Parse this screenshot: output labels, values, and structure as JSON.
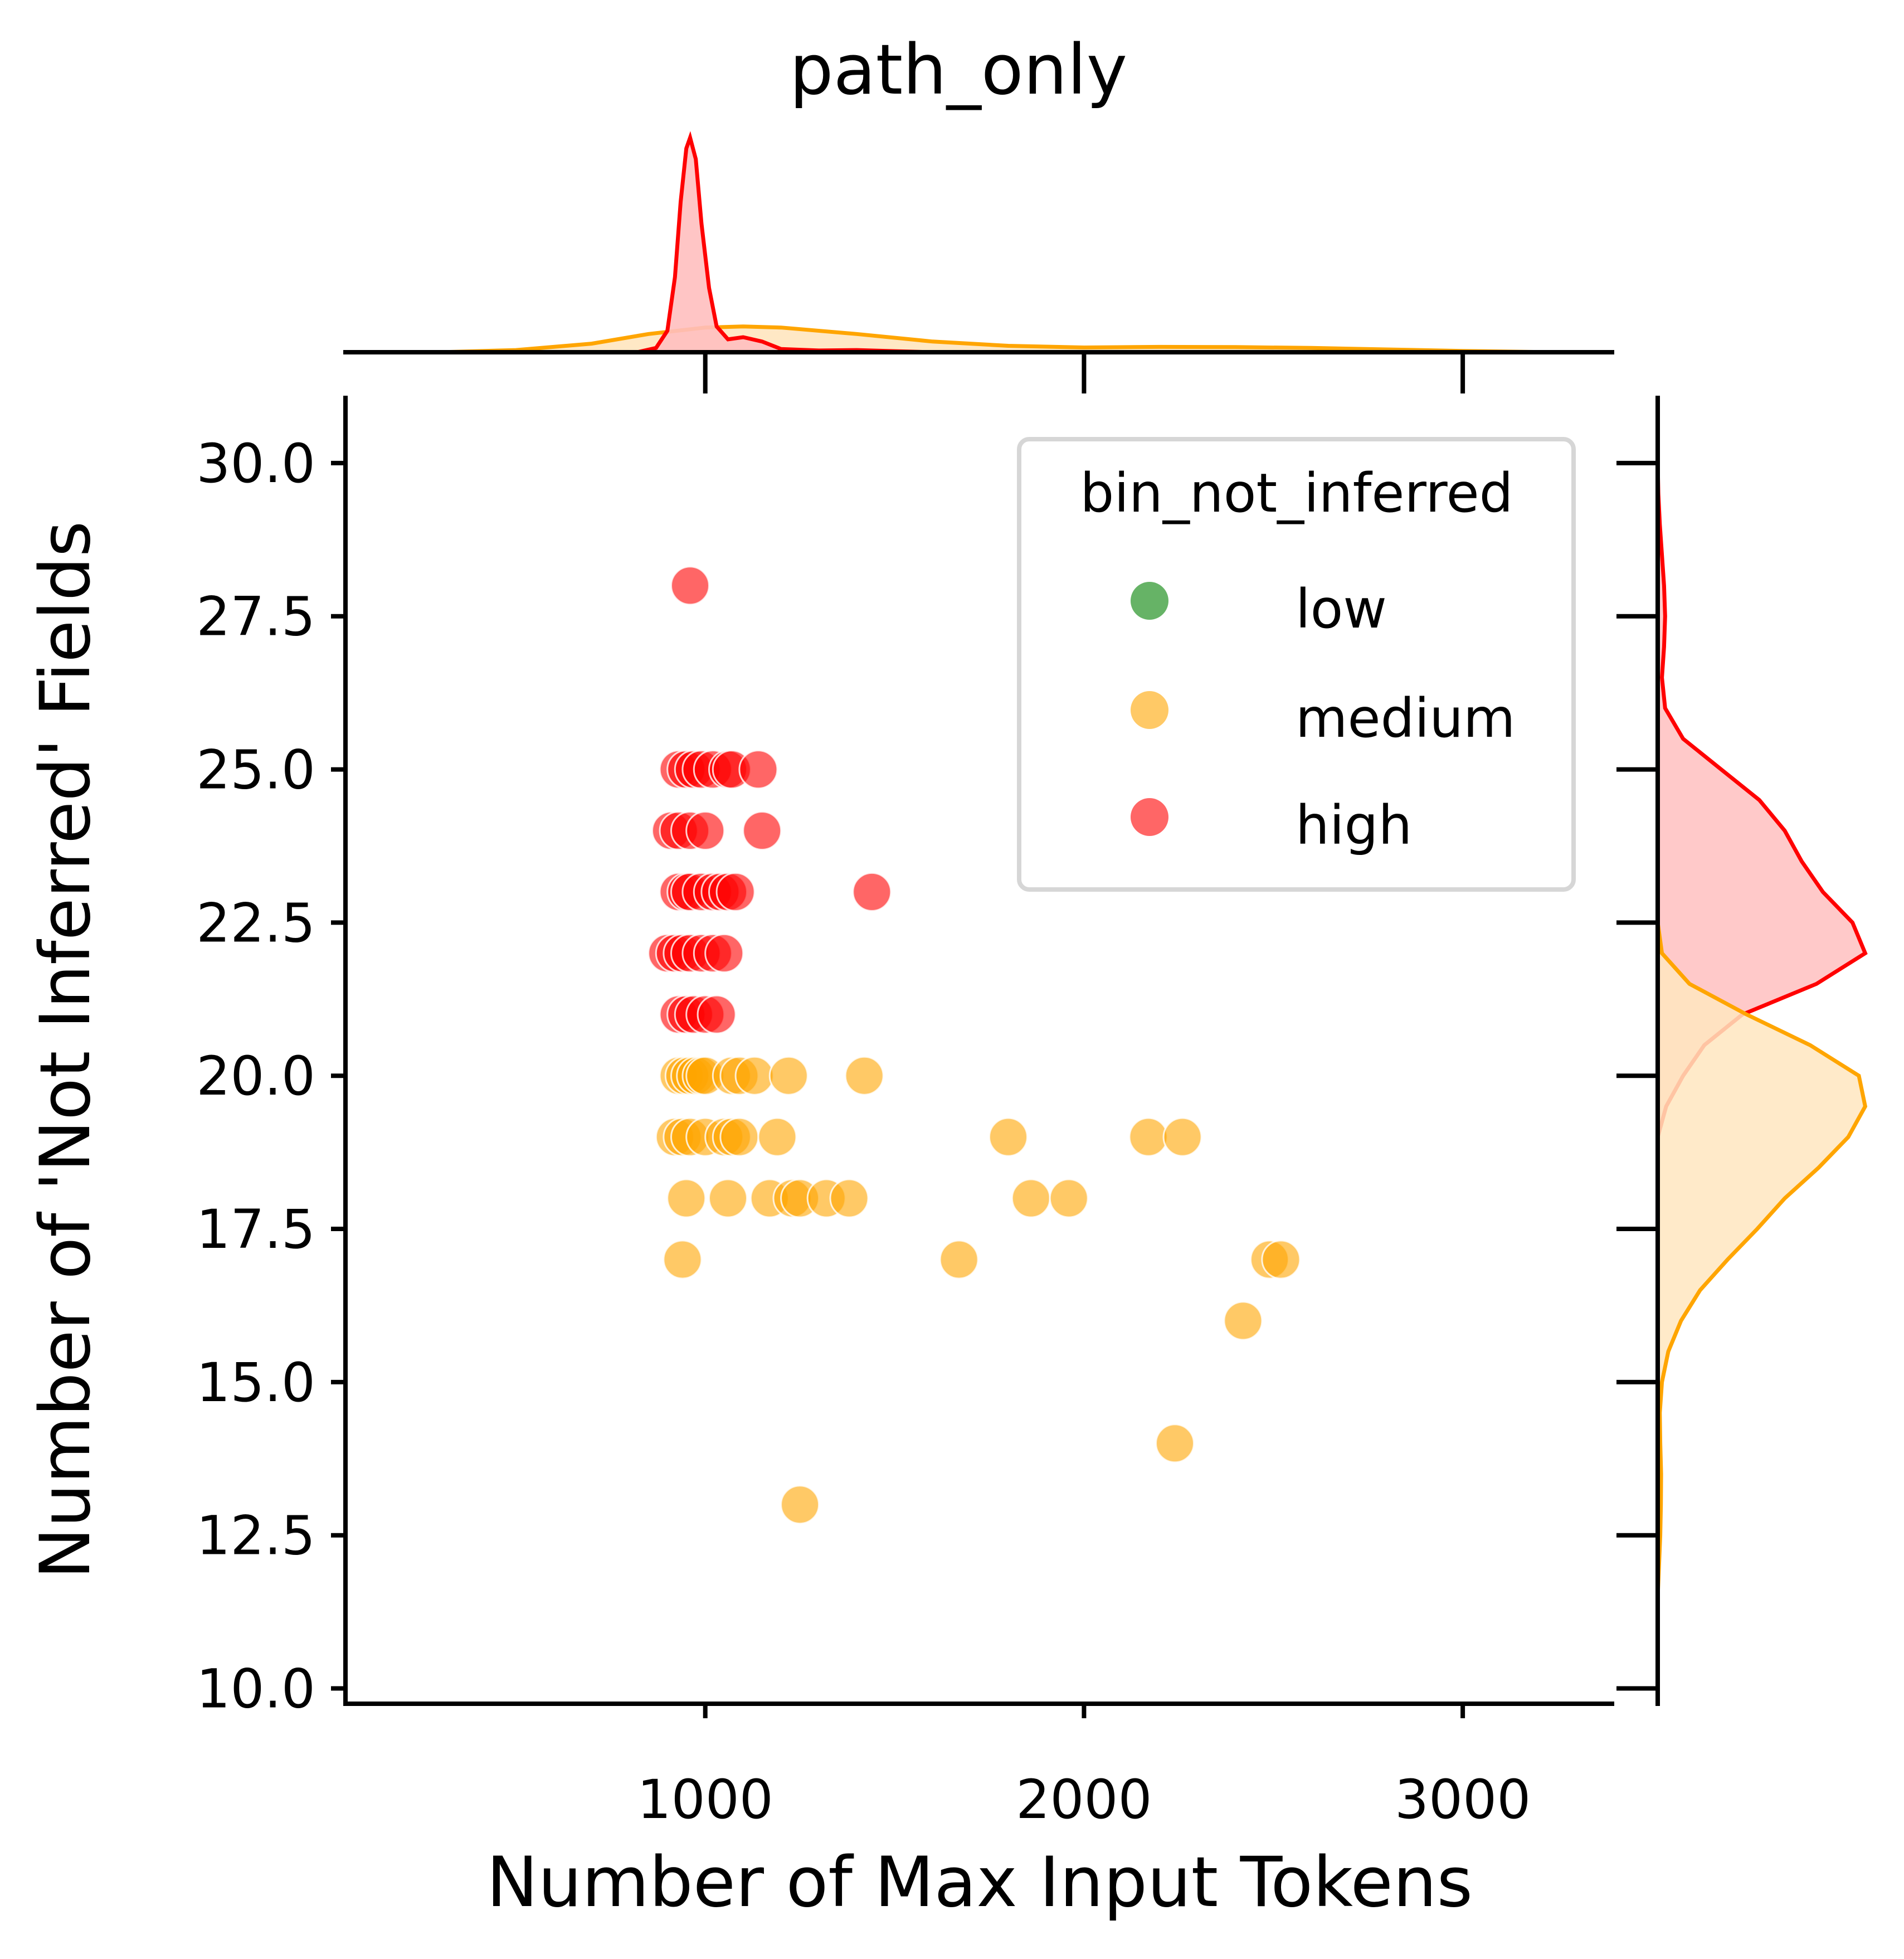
{
  "chart_data": {
    "type": "scatter",
    "title": "path_only",
    "xlabel": "Number of Max Input Tokens",
    "ylabel": "Number of 'Not Inferred' Fields",
    "xlim": [
      50,
      3400
    ],
    "ylim": [
      9.75,
      31.1
    ],
    "x_ticks": [
      "1000",
      "2000",
      "3000"
    ],
    "x_tick_values": [
      1000,
      2000,
      3000
    ],
    "y_ticks": [
      "10.0",
      "12.5",
      "15.0",
      "17.5",
      "20.0",
      "22.5",
      "25.0",
      "27.5",
      "30.0"
    ],
    "y_tick_values": [
      10,
      12.5,
      15,
      17.5,
      20,
      22.5,
      25,
      27.5,
      30
    ],
    "grid": false,
    "legend": {
      "title": "bin_not_inferred",
      "placement": "upper-right",
      "entries": [
        {
          "label": "low",
          "color": "#008000"
        },
        {
          "label": "medium",
          "color": "#FFA500"
        },
        {
          "label": "high",
          "color": "#FF0000"
        }
      ]
    },
    "series": [
      {
        "name": "medium",
        "color": "#FFA500",
        "points": [
          [
            930,
            20
          ],
          [
            945,
            20
          ],
          [
            960,
            20
          ],
          [
            975,
            20
          ],
          [
            990,
            20
          ],
          [
            1000,
            20
          ],
          [
            1070,
            20
          ],
          [
            1090,
            20
          ],
          [
            1130,
            20
          ],
          [
            1220,
            20
          ],
          [
            1420,
            20
          ],
          [
            920,
            19
          ],
          [
            940,
            19
          ],
          [
            960,
            19
          ],
          [
            1000,
            19
          ],
          [
            1050,
            19
          ],
          [
            1070,
            19
          ],
          [
            1090,
            19
          ],
          [
            1190,
            19
          ],
          [
            1800,
            19
          ],
          [
            2170,
            19
          ],
          [
            2260,
            19
          ],
          [
            950,
            18
          ],
          [
            1060,
            18
          ],
          [
            1170,
            18
          ],
          [
            1230,
            18
          ],
          [
            1250,
            18
          ],
          [
            1320,
            18
          ],
          [
            1380,
            18
          ],
          [
            1860,
            18
          ],
          [
            1960,
            18
          ],
          [
            940,
            17
          ],
          [
            1670,
            17
          ],
          [
            2490,
            17
          ],
          [
            2520,
            17
          ],
          [
            2420,
            16
          ],
          [
            2240,
            14
          ],
          [
            1250,
            13
          ]
        ]
      },
      {
        "name": "high",
        "color": "#FF0000",
        "points": [
          [
            960,
            28
          ],
          [
            930,
            25
          ],
          [
            950,
            25
          ],
          [
            970,
            25
          ],
          [
            990,
            25
          ],
          [
            1020,
            25
          ],
          [
            1060,
            25
          ],
          [
            1070,
            25
          ],
          [
            1140,
            25
          ],
          [
            910,
            24
          ],
          [
            930,
            24
          ],
          [
            960,
            24
          ],
          [
            1000,
            24
          ],
          [
            1150,
            24
          ],
          [
            930,
            23
          ],
          [
            950,
            23
          ],
          [
            960,
            23
          ],
          [
            990,
            23
          ],
          [
            1020,
            23
          ],
          [
            1040,
            23
          ],
          [
            1060,
            23
          ],
          [
            1080,
            23
          ],
          [
            1440,
            23
          ],
          [
            900,
            22
          ],
          [
            920,
            22
          ],
          [
            940,
            22
          ],
          [
            960,
            22
          ],
          [
            990,
            22
          ],
          [
            1020,
            22
          ],
          [
            1050,
            22
          ],
          [
            930,
            21
          ],
          [
            950,
            21
          ],
          [
            970,
            21
          ],
          [
            1000,
            21
          ],
          [
            1030,
            21
          ]
        ]
      }
    ],
    "marginal_x": [
      {
        "name": "high",
        "color": "#FF0000",
        "fill": "#FFBFBF",
        "curve": [
          [
            820,
            0
          ],
          [
            870,
            0.02
          ],
          [
            900,
            0.1
          ],
          [
            920,
            0.35
          ],
          [
            935,
            0.7
          ],
          [
            950,
            0.95
          ],
          [
            960,
            1
          ],
          [
            975,
            0.9
          ],
          [
            990,
            0.6
          ],
          [
            1010,
            0.3
          ],
          [
            1030,
            0.12
          ],
          [
            1060,
            0.06
          ],
          [
            1100,
            0.07
          ],
          [
            1150,
            0.05
          ],
          [
            1200,
            0.015
          ],
          [
            1300,
            0.008
          ],
          [
            1400,
            0.01
          ],
          [
            1500,
            0.005
          ],
          [
            1600,
            0
          ]
        ]
      },
      {
        "name": "medium",
        "color": "#FFA500",
        "fill": "#FFE6BF",
        "curve": [
          [
            300,
            0
          ],
          [
            500,
            0.01
          ],
          [
            700,
            0.04
          ],
          [
            850,
            0.085
          ],
          [
            1000,
            0.115
          ],
          [
            1100,
            0.12
          ],
          [
            1200,
            0.115
          ],
          [
            1400,
            0.085
          ],
          [
            1600,
            0.05
          ],
          [
            1800,
            0.03
          ],
          [
            2000,
            0.022
          ],
          [
            2200,
            0.025
          ],
          [
            2400,
            0.024
          ],
          [
            2600,
            0.02
          ],
          [
            2800,
            0.013
          ],
          [
            3000,
            0.006
          ],
          [
            3200,
            0.001
          ],
          [
            3300,
            0
          ]
        ]
      }
    ],
    "marginal_y": [
      {
        "name": "high",
        "color": "#FF0000",
        "fill": "#FFBFBF",
        "curve": [
          [
            19,
            0
          ],
          [
            19.5,
            0.04
          ],
          [
            20,
            0.12
          ],
          [
            20.5,
            0.22
          ],
          [
            21,
            0.4
          ],
          [
            21.5,
            0.75
          ],
          [
            22,
            0.98
          ],
          [
            22.5,
            0.92
          ],
          [
            23,
            0.78
          ],
          [
            23.5,
            0.68
          ],
          [
            24,
            0.6
          ],
          [
            24.5,
            0.48
          ],
          [
            25,
            0.3
          ],
          [
            25.5,
            0.12
          ],
          [
            26,
            0.035
          ],
          [
            26.5,
            0.02
          ],
          [
            27,
            0.03
          ],
          [
            27.5,
            0.035
          ],
          [
            28,
            0.03
          ],
          [
            28.5,
            0.02
          ],
          [
            29,
            0.01
          ],
          [
            29.5,
            0.003
          ],
          [
            30,
            0
          ]
        ]
      },
      {
        "name": "medium",
        "color": "#FFA500",
        "fill": "#FFE6BF",
        "curve": [
          [
            11.5,
            0
          ],
          [
            12,
            0.006
          ],
          [
            12.5,
            0.012
          ],
          [
            13,
            0.015
          ],
          [
            13.5,
            0.016
          ],
          [
            14,
            0.012
          ],
          [
            14.5,
            0.01
          ],
          [
            15,
            0.02
          ],
          [
            15.5,
            0.05
          ],
          [
            16,
            0.11
          ],
          [
            16.5,
            0.2
          ],
          [
            17,
            0.33
          ],
          [
            17.5,
            0.47
          ],
          [
            18,
            0.6
          ],
          [
            18.5,
            0.76
          ],
          [
            19,
            0.9
          ],
          [
            19.5,
            0.98
          ],
          [
            20,
            0.95
          ],
          [
            20.5,
            0.72
          ],
          [
            21,
            0.42
          ],
          [
            21.5,
            0.15
          ],
          [
            22,
            0.02
          ],
          [
            22.5,
            0
          ]
        ]
      }
    ]
  }
}
